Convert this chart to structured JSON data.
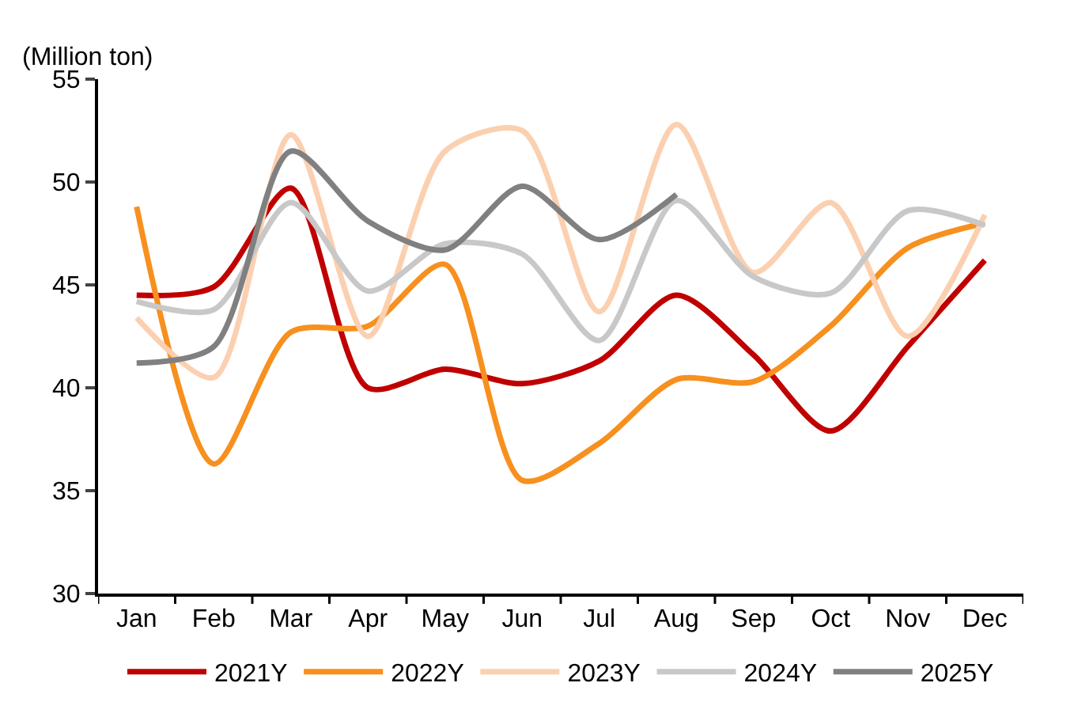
{
  "chart_data": {
    "type": "line",
    "ylabel": "(Million ton)",
    "categories": [
      "Jan",
      "Feb",
      "Mar",
      "Apr",
      "May",
      "Jun",
      "Jul",
      "Aug",
      "Sep",
      "Oct",
      "Nov",
      "Dec"
    ],
    "series": [
      {
        "name": "2021Y",
        "color": "#c00000",
        "values": [
          44.5,
          44.9,
          49.7,
          40.0,
          40.9,
          40.2,
          41.3,
          44.5,
          41.6,
          37.9,
          42.0,
          46.2
        ]
      },
      {
        "name": "2022Y",
        "color": "#f7901e",
        "values": [
          48.8,
          36.3,
          42.7,
          43.0,
          46.0,
          35.5,
          37.3,
          40.4,
          40.3,
          43.0,
          46.8,
          48.0
        ]
      },
      {
        "name": "2023Y",
        "color": "#fbd0b0",
        "values": [
          43.4,
          40.5,
          52.3,
          42.5,
          51.5,
          52.5,
          43.7,
          52.8,
          45.6,
          49.0,
          42.5,
          48.4
        ]
      },
      {
        "name": "2024Y",
        "color": "#c8c8c8",
        "values": [
          44.2,
          43.8,
          49.0,
          44.7,
          47.0,
          46.5,
          42.3,
          49.1,
          45.4,
          44.6,
          48.6,
          47.9
        ]
      },
      {
        "name": "2025Y",
        "color": "#808080",
        "values": [
          41.2,
          42.0,
          51.5,
          48.1,
          46.7,
          49.8,
          47.2,
          49.4,
          null,
          null,
          null,
          null
        ]
      }
    ],
    "ylim": [
      30,
      55
    ],
    "yticks": [
      30,
      35,
      40,
      45,
      50,
      55
    ],
    "legend": "bottom",
    "marker": "none",
    "line_style": "solid"
  }
}
